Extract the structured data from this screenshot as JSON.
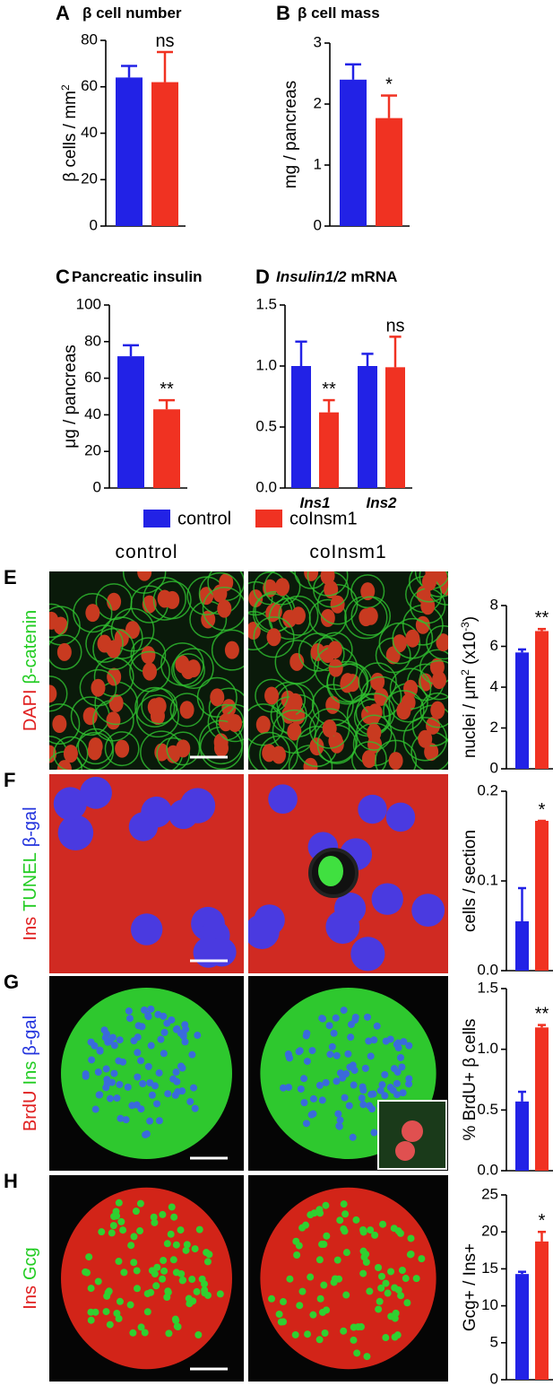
{
  "legend": [
    {
      "name": "control",
      "color": "#2222e6"
    },
    {
      "name": "coInsm1",
      "color": "#f03222"
    }
  ],
  "images": {
    "columns": [
      "control",
      "coInsm1"
    ],
    "rows": [
      {
        "panel": "E",
        "stains": [
          {
            "text": "DAPI",
            "color": "#e02020"
          },
          {
            "text": "β-catenin",
            "color": "#22cc22"
          }
        ]
      },
      {
        "panel": "F",
        "stains": [
          {
            "text": "Ins",
            "color": "#e02020"
          },
          {
            "text": "TUNEL",
            "color": "#22cc22"
          },
          {
            "text": "β-gal",
            "color": "#2233dd"
          }
        ]
      },
      {
        "panel": "G",
        "stains": [
          {
            "text": "BrdU",
            "color": "#e02020"
          },
          {
            "text": "Ins",
            "color": "#22cc22"
          },
          {
            "text": "β-gal",
            "color": "#2233dd"
          }
        ]
      },
      {
        "panel": "H",
        "stains": [
          {
            "text": "Ins",
            "color": "#e02020"
          },
          {
            "text": "Gcg",
            "color": "#22cc22"
          }
        ]
      }
    ]
  },
  "chart_data": [
    {
      "type": "bar",
      "panel": "A",
      "title": "β cell number",
      "ylabel": [
        {
          "text": "β cells / mm"
        },
        {
          "text": "2",
          "sup": true
        }
      ],
      "ylim": [
        0,
        80
      ],
      "yticks": [
        0,
        20,
        40,
        60,
        80
      ],
      "series": [
        {
          "color": "#2222e6",
          "values": [
            64
          ],
          "errors": [
            5
          ]
        },
        {
          "color": "#f03222",
          "values": [
            62
          ],
          "errors": [
            13
          ]
        }
      ],
      "annotations": [
        "ns"
      ]
    },
    {
      "type": "bar",
      "panel": "B",
      "title": "β cell mass",
      "ylabel": [
        {
          "text": "mg / pancreas"
        }
      ],
      "ylim": [
        0,
        3
      ],
      "yticks": [
        0,
        1,
        2,
        3
      ],
      "series": [
        {
          "color": "#2222e6",
          "values": [
            2.4
          ],
          "errors": [
            0.25
          ]
        },
        {
          "color": "#f03222",
          "values": [
            1.77
          ],
          "errors": [
            0.37
          ]
        }
      ],
      "annotations": [
        "*"
      ]
    },
    {
      "type": "bar",
      "panel": "C",
      "title": "Pancreatic insulin",
      "ylabel": [
        {
          "text": "μg / pancreas"
        }
      ],
      "ylim": [
        0,
        100
      ],
      "yticks": [
        0,
        20,
        40,
        60,
        80,
        100
      ],
      "series": [
        {
          "color": "#2222e6",
          "values": [
            72
          ],
          "errors": [
            6
          ]
        },
        {
          "color": "#f03222",
          "values": [
            43
          ],
          "errors": [
            5
          ]
        }
      ],
      "annotations": [
        "**"
      ]
    },
    {
      "type": "bar",
      "panel": "D",
      "title_italic": "Insulin1/2",
      "title": "mRNA",
      "categories": [
        "Ins1",
        "Ins2"
      ],
      "ylim": [
        0,
        1.5
      ],
      "yticks": [
        {
          "value": 0,
          "label": "0.0"
        },
        0.5,
        {
          "value": 1,
          "label": "1.0"
        },
        1.5
      ],
      "series": [
        {
          "color": "#2222e6",
          "values": [
            1.0,
            1.0
          ],
          "errors": [
            0.2,
            0.1
          ]
        },
        {
          "color": "#f03222",
          "values": [
            0.62,
            0.99
          ],
          "errors": [
            0.1,
            0.25
          ]
        }
      ],
      "annotations": [
        "**",
        "ns"
      ]
    },
    {
      "type": "bar",
      "ylabel": [
        {
          "text": "nuclei / μm"
        },
        {
          "text": "2",
          "sup": true
        },
        {
          "text": " (x10"
        },
        {
          "text": "-3",
          "sup": true
        },
        {
          "text": ")"
        }
      ],
      "ylim": [
        0,
        8
      ],
      "yticks": [
        0,
        2,
        4,
        6,
        8
      ],
      "series": [
        {
          "color": "#2222e6",
          "values": [
            5.7
          ],
          "errors": [
            0.15
          ]
        },
        {
          "color": "#f03222",
          "values": [
            6.75
          ],
          "errors": [
            0.1
          ]
        }
      ],
      "annotations": [
        "**"
      ]
    },
    {
      "type": "bar",
      "ylabel": [
        {
          "text": "cells / section"
        }
      ],
      "ylim": [
        0,
        0.2
      ],
      "yticks": [
        {
          "value": 0,
          "label": "0.0"
        },
        0.1,
        0.2
      ],
      "series": [
        {
          "color": "#2222e6",
          "values": [
            0.055
          ],
          "errors": [
            0.037
          ]
        },
        {
          "color": "#f03222",
          "values": [
            0.167
          ],
          "errors": [
            0
          ]
        }
      ],
      "annotations": [
        "*"
      ]
    },
    {
      "type": "bar",
      "ylabel": [
        {
          "text": "% BrdU+ β cells"
        }
      ],
      "ylim": [
        0,
        1.5
      ],
      "yticks": [
        {
          "value": 0,
          "label": "0.0"
        },
        0.5,
        {
          "value": 1,
          "label": "1.0"
        },
        1.5
      ],
      "series": [
        {
          "color": "#2222e6",
          "values": [
            0.57
          ],
          "errors": [
            0.08
          ]
        },
        {
          "color": "#f03222",
          "values": [
            1.18
          ],
          "errors": [
            0.02
          ]
        }
      ],
      "annotations": [
        "**"
      ]
    },
    {
      "type": "bar",
      "ylabel": [
        {
          "text": "Gcg+ / Ins+"
        }
      ],
      "ylim": [
        0,
        25
      ],
      "yticks": [
        0,
        5,
        10,
        15,
        20,
        25
      ],
      "series": [
        {
          "color": "#2222e6",
          "values": [
            14.3
          ],
          "errors": [
            0.3
          ]
        },
        {
          "color": "#f03222",
          "values": [
            18.7
          ],
          "errors": [
            1.3
          ]
        }
      ],
      "annotations": [
        "*"
      ]
    }
  ]
}
